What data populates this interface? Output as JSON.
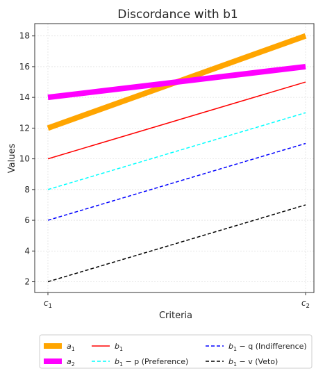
{
  "chart_data": {
    "type": "line",
    "title": "Discordance with b1",
    "xlabel": "Criteria",
    "ylabel": "Values",
    "categories": [
      "c1",
      "c2"
    ],
    "x_tick_labels": [
      {
        "base": "c",
        "sub": "1"
      },
      {
        "base": "c",
        "sub": "2"
      }
    ],
    "ylim": [
      1.3,
      18.8
    ],
    "yticks": [
      2,
      4,
      6,
      8,
      10,
      12,
      14,
      16,
      18
    ],
    "grid": true,
    "legend_position": "bottom",
    "series": [
      {
        "id": "a1",
        "values": [
          12,
          18
        ],
        "color": "#FFA500",
        "style": "solid",
        "weight": "thick",
        "legend": {
          "base": "a",
          "sub": "1",
          "rest": ""
        }
      },
      {
        "id": "a2",
        "values": [
          14,
          16
        ],
        "color": "#FF00FF",
        "style": "solid",
        "weight": "thick",
        "legend": {
          "base": "a",
          "sub": "2",
          "rest": ""
        }
      },
      {
        "id": "b1",
        "values": [
          10,
          15
        ],
        "color": "#FF0000",
        "style": "solid",
        "weight": "thin",
        "legend": {
          "base": "b",
          "sub": "1",
          "rest": ""
        }
      },
      {
        "id": "b1_minus_p",
        "values": [
          8,
          13
        ],
        "color": "#00FFFF",
        "style": "dashed",
        "weight": "thin",
        "legend": {
          "base": "b",
          "sub": "1",
          "rest": " − p (Preference)"
        }
      },
      {
        "id": "b1_minus_q",
        "values": [
          6,
          11
        ],
        "color": "#0000FF",
        "style": "dashed",
        "weight": "thin",
        "legend": {
          "base": "b",
          "sub": "1",
          "rest": " − q (Indifference)"
        }
      },
      {
        "id": "b1_minus_v",
        "values": [
          2,
          7
        ],
        "color": "#000000",
        "style": "dashed",
        "weight": "thin",
        "legend": {
          "base": "b",
          "sub": "1",
          "rest": " − v (Veto)"
        }
      }
    ]
  }
}
